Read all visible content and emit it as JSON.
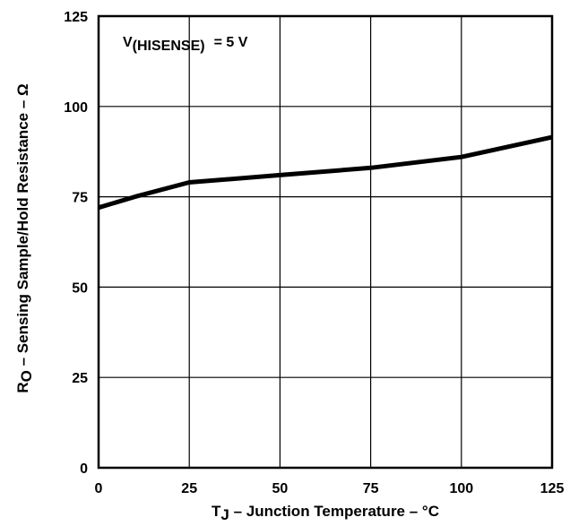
{
  "chart_data": {
    "type": "line",
    "annotation": {
      "main": "V",
      "sub": "(HISENSE)",
      "rest": "= 5 V"
    },
    "xlabel": {
      "prefix": "T",
      "sub": "J",
      "rest": " – Junction Temperature – °C"
    },
    "ylabel": {
      "prefix": "R",
      "sub": "O",
      "rest": " – Sensing Sample/Hold Resistance – Ω"
    },
    "xlim": [
      0,
      125
    ],
    "ylim": [
      0,
      125
    ],
    "x_ticks": [
      "0",
      "25",
      "50",
      "75",
      "100",
      "125"
    ],
    "y_ticks": [
      "0",
      "25",
      "50",
      "75",
      "100",
      "125"
    ],
    "grid": true,
    "series": [
      {
        "x": [
          0,
          10,
          25,
          50,
          75,
          100,
          125
        ],
        "y": [
          72,
          75,
          79,
          81,
          83,
          86,
          91.5
        ]
      }
    ],
    "colors": {
      "line": "#000000",
      "grid": "#000000",
      "background": "#ffffff"
    }
  }
}
